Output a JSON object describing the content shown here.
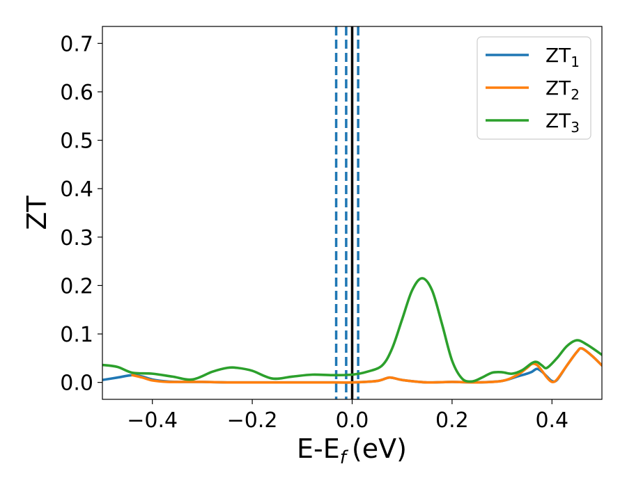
{
  "chart_data": {
    "type": "line",
    "xlabel": "E-E",
    "xlabel_sub": "f",
    "xlabel_unit": "(eV)",
    "ylabel": "ZT",
    "xlim": [
      -0.5,
      0.5
    ],
    "ylim": [
      -0.035,
      0.735
    ],
    "xticks": [
      -0.4,
      -0.2,
      0.0,
      0.2,
      0.4
    ],
    "xtick_labels": [
      "−0.4",
      "−0.2",
      "0.0",
      "0.2",
      "0.4"
    ],
    "yticks": [
      0.0,
      0.1,
      0.2,
      0.3,
      0.4,
      0.5,
      0.6,
      0.7
    ],
    "ytick_labels": [
      "0.0",
      "0.1",
      "0.2",
      "0.3",
      "0.4",
      "0.5",
      "0.6",
      "0.7"
    ],
    "grid": false,
    "legend_position": "top-right",
    "vlines": [
      {
        "x": -0.032,
        "style": "dashed",
        "color": "#1f77b4"
      },
      {
        "x": -0.012,
        "style": "dashed",
        "color": "#1f77b4"
      },
      {
        "x": 0.0,
        "style": "solid",
        "color": "#000000"
      },
      {
        "x": 0.012,
        "style": "dashed",
        "color": "#1f77b4"
      }
    ],
    "series": [
      {
        "name": "ZT",
        "name_sub": "1",
        "color": "#1f77b4",
        "x": [
          -0.5,
          -0.47,
          -0.44,
          -0.42,
          -0.4,
          -0.37,
          -0.34,
          -0.3,
          -0.25,
          -0.2,
          -0.15,
          -0.1,
          -0.05,
          0.0,
          0.05,
          0.075,
          0.1,
          0.15,
          0.2,
          0.25,
          0.3,
          0.33,
          0.35,
          0.36,
          0.37,
          0.38,
          0.39,
          0.4,
          0.41,
          0.43,
          0.45,
          0.46,
          0.48,
          0.5
        ],
        "y": [
          0.005,
          0.01,
          0.015,
          0.012,
          0.006,
          0.002,
          0.001,
          0.001,
          0.0,
          0.0,
          0.0,
          0.0,
          0.0,
          0.0,
          0.003,
          0.01,
          0.005,
          0.0,
          0.001,
          0.0,
          0.003,
          0.012,
          0.018,
          0.022,
          0.028,
          0.022,
          0.012,
          0.003,
          0.005,
          0.035,
          0.063,
          0.07,
          0.055,
          0.035
        ]
      },
      {
        "name": "ZT",
        "name_sub": "2",
        "color": "#ff7f0e",
        "x": [
          -0.44,
          -0.42,
          -0.4,
          -0.37,
          -0.34,
          -0.3,
          -0.25,
          -0.2,
          -0.15,
          -0.1,
          -0.05,
          0.0,
          0.05,
          0.075,
          0.1,
          0.15,
          0.2,
          0.25,
          0.3,
          0.33,
          0.35,
          0.36,
          0.37,
          0.38,
          0.39,
          0.4,
          0.41,
          0.43,
          0.45,
          0.46,
          0.48,
          0.5
        ],
        "y": [
          0.015,
          0.01,
          0.004,
          0.001,
          0.001,
          0.001,
          0.0,
          0.0,
          0.0,
          0.0,
          0.0,
          0.0,
          0.003,
          0.01,
          0.005,
          0.0,
          0.001,
          0.0,
          0.003,
          0.015,
          0.03,
          0.038,
          0.036,
          0.024,
          0.01,
          0.001,
          0.006,
          0.035,
          0.063,
          0.07,
          0.055,
          0.035
        ]
      },
      {
        "name": "ZT",
        "name_sub": "3",
        "color": "#2ca02c",
        "x": [
          -0.5,
          -0.47,
          -0.44,
          -0.4,
          -0.36,
          -0.32,
          -0.28,
          -0.25,
          -0.23,
          -0.2,
          -0.16,
          -0.12,
          -0.08,
          -0.04,
          0.0,
          0.03,
          0.06,
          0.08,
          0.1,
          0.12,
          0.14,
          0.16,
          0.18,
          0.2,
          0.22,
          0.24,
          0.26,
          0.28,
          0.3,
          0.32,
          0.34,
          0.36,
          0.37,
          0.38,
          0.39,
          0.41,
          0.43,
          0.45,
          0.47,
          0.5
        ],
        "y": [
          0.036,
          0.032,
          0.02,
          0.018,
          0.012,
          0.006,
          0.022,
          0.03,
          0.03,
          0.024,
          0.008,
          0.012,
          0.016,
          0.015,
          0.016,
          0.022,
          0.035,
          0.07,
          0.13,
          0.19,
          0.215,
          0.19,
          0.12,
          0.045,
          0.008,
          0.002,
          0.01,
          0.02,
          0.021,
          0.018,
          0.025,
          0.04,
          0.042,
          0.035,
          0.03,
          0.05,
          0.075,
          0.087,
          0.078,
          0.057
        ]
      }
    ]
  }
}
